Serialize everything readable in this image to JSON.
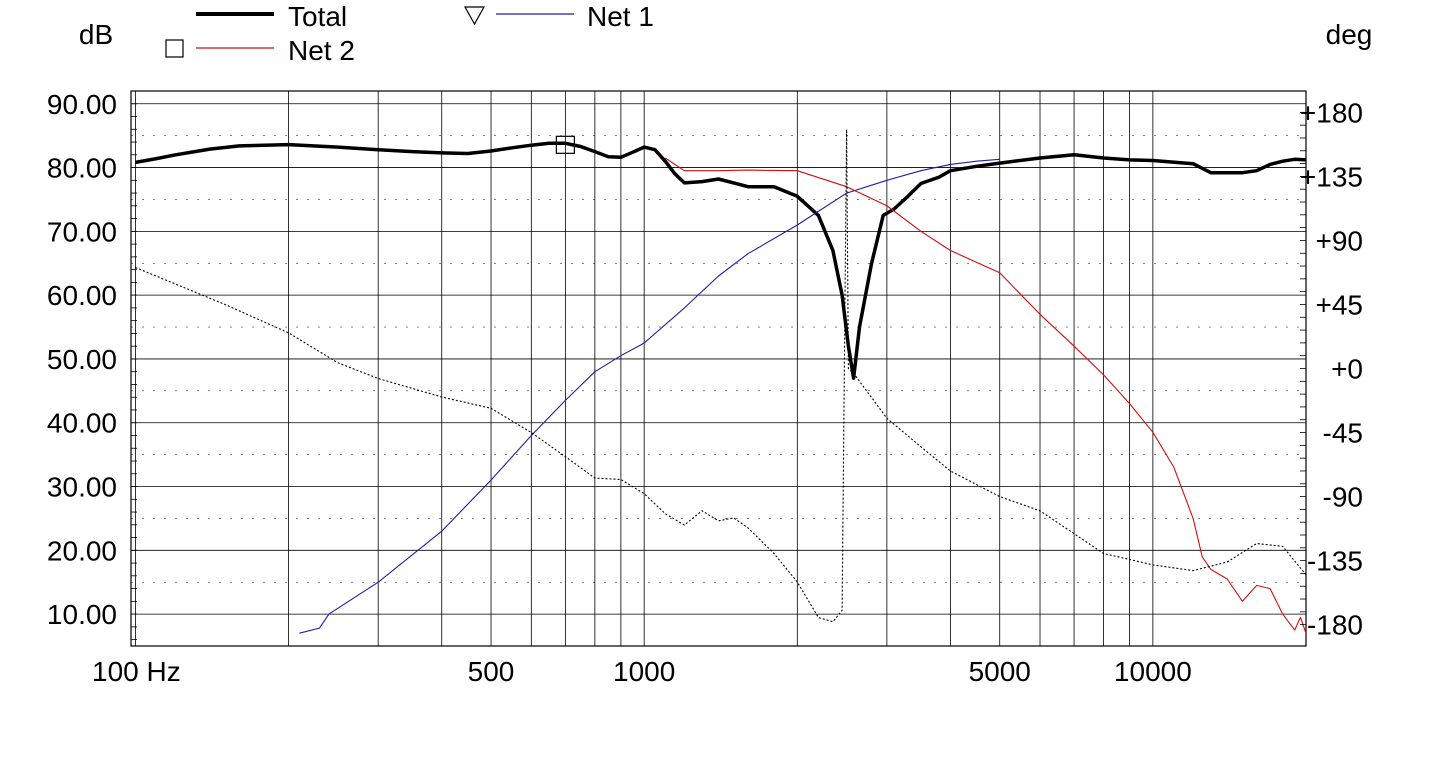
{
  "chart_data": {
    "type": "line",
    "ylabel_left": "dB",
    "ylabel_right": "deg",
    "xscale": "log",
    "xlim": [
      98,
      20000
    ],
    "ylim_left": [
      5,
      92
    ],
    "ylim_right": [
      -195,
      195
    ],
    "grid": true,
    "legend_placement": "top-left",
    "x_tick_labels": [
      {
        "value": 100,
        "label": "100 Hz"
      },
      {
        "value": 500,
        "label": "500"
      },
      {
        "value": 1000,
        "label": "1000"
      },
      {
        "value": 5000,
        "label": "5000"
      },
      {
        "value": 10000,
        "label": "10000"
      }
    ],
    "y_left_ticks": [
      {
        "value": 90,
        "label": "90.00"
      },
      {
        "value": 80,
        "label": "80.00"
      },
      {
        "value": 70,
        "label": "70.00"
      },
      {
        "value": 60,
        "label": "60.00"
      },
      {
        "value": 50,
        "label": "50.00"
      },
      {
        "value": 40,
        "label": "40.00"
      },
      {
        "value": 30,
        "label": "30.00"
      },
      {
        "value": 20,
        "label": "20.00"
      },
      {
        "value": 10,
        "label": "10.00"
      }
    ],
    "y_right_ticks": [
      {
        "value": 180,
        "label": "+180"
      },
      {
        "value": 135,
        "label": "+135"
      },
      {
        "value": 90,
        "label": "+90"
      },
      {
        "value": 45,
        "label": "+45"
      },
      {
        "value": 0,
        "label": "+0"
      },
      {
        "value": -45,
        "label": "-45"
      },
      {
        "value": -90,
        "label": "-90"
      },
      {
        "value": -135,
        "label": "-135"
      },
      {
        "value": -180,
        "label": "-180"
      }
    ],
    "series": [
      {
        "name": "Total",
        "axis": "left",
        "color": "#000000",
        "style": "thick",
        "marker": "",
        "points": [
          [
            100,
            80.8
          ],
          [
            110,
            81.4
          ],
          [
            120,
            82
          ],
          [
            140,
            82.9
          ],
          [
            160,
            83.4
          ],
          [
            200,
            83.6
          ],
          [
            250,
            83.2
          ],
          [
            300,
            82.8
          ],
          [
            350,
            82.5
          ],
          [
            400,
            82.3
          ],
          [
            450,
            82.2
          ],
          [
            500,
            82.6
          ],
          [
            550,
            83.1
          ],
          [
            600,
            83.5
          ],
          [
            650,
            83.8
          ],
          [
            700,
            83.8
          ],
          [
            750,
            83.3
          ],
          [
            800,
            82.5
          ],
          [
            850,
            81.7
          ],
          [
            900,
            81.6
          ],
          [
            950,
            82.4
          ],
          [
            1000,
            83.2
          ],
          [
            1050,
            82.8
          ],
          [
            1100,
            81
          ],
          [
            1150,
            79
          ],
          [
            1200,
            77.6
          ],
          [
            1300,
            77.8
          ],
          [
            1400,
            78.2
          ],
          [
            1500,
            77.6
          ],
          [
            1600,
            77
          ],
          [
            1800,
            77
          ],
          [
            2000,
            75.5
          ],
          [
            2200,
            72.5
          ],
          [
            2350,
            67
          ],
          [
            2450,
            60
          ],
          [
            2520,
            52
          ],
          [
            2580,
            47
          ],
          [
            2650,
            55
          ],
          [
            2800,
            65
          ],
          [
            2950,
            72.5
          ],
          [
            3100,
            73.5
          ],
          [
            3300,
            75.5
          ],
          [
            3500,
            77.5
          ],
          [
            3800,
            78.5
          ],
          [
            4000,
            79.5
          ],
          [
            4500,
            80.2
          ],
          [
            5000,
            80.7
          ],
          [
            6000,
            81.5
          ],
          [
            7000,
            82
          ],
          [
            8000,
            81.5
          ],
          [
            9000,
            81.2
          ],
          [
            10000,
            81.1
          ],
          [
            12000,
            80.6
          ],
          [
            13000,
            79.2
          ],
          [
            15000,
            79.2
          ],
          [
            16000,
            79.5
          ],
          [
            17000,
            80.5
          ],
          [
            18000,
            81
          ],
          [
            19000,
            81.3
          ],
          [
            20000,
            81.2
          ]
        ]
      },
      {
        "name": "Net 1",
        "axis": "left",
        "color": "#1e1ea8",
        "style": "thin",
        "marker": "triangle-down",
        "points": [
          [
            210,
            7
          ],
          [
            230,
            7.8
          ],
          [
            240,
            10
          ],
          [
            300,
            15
          ],
          [
            400,
            23
          ],
          [
            500,
            31
          ],
          [
            600,
            38
          ],
          [
            700,
            43.5
          ],
          [
            800,
            48
          ],
          [
            900,
            50.5
          ],
          [
            1000,
            52.5
          ],
          [
            1200,
            58
          ],
          [
            1400,
            63
          ],
          [
            1600,
            66.5
          ],
          [
            2000,
            71
          ],
          [
            2500,
            76
          ],
          [
            3000,
            78
          ],
          [
            3500,
            79.5
          ],
          [
            4000,
            80.5
          ],
          [
            4500,
            81
          ],
          [
            5000,
            81.3
          ]
        ]
      },
      {
        "name": "Net 2",
        "axis": "left",
        "color": "#d01010",
        "style": "thin",
        "marker": "square",
        "points": [
          [
            1100,
            81.5
          ],
          [
            1200,
            79.5
          ],
          [
            1400,
            79.5
          ],
          [
            1600,
            79.6
          ],
          [
            2000,
            79.5
          ],
          [
            2500,
            77
          ],
          [
            3000,
            74
          ],
          [
            3500,
            70
          ],
          [
            4000,
            67
          ],
          [
            5000,
            63.5
          ],
          [
            6000,
            57
          ],
          [
            7000,
            52
          ],
          [
            8000,
            47.5
          ],
          [
            9000,
            43
          ],
          [
            10000,
            38.5
          ],
          [
            11000,
            33
          ],
          [
            12000,
            25
          ],
          [
            12500,
            19
          ],
          [
            13000,
            17
          ],
          [
            14000,
            15.5
          ],
          [
            15000,
            12
          ],
          [
            16000,
            14.5
          ],
          [
            17000,
            14
          ],
          [
            18000,
            10
          ],
          [
            19000,
            7.5
          ],
          [
            19500,
            9.5
          ],
          [
            20000,
            7
          ]
        ]
      },
      {
        "name": "",
        "axis": "right",
        "color": "#000000",
        "style": "dotted",
        "marker": "",
        "points": [
          [
            100,
            71
          ],
          [
            150,
            45
          ],
          [
            200,
            25
          ],
          [
            250,
            4
          ],
          [
            300,
            -7
          ],
          [
            400,
            -20
          ],
          [
            500,
            -28
          ],
          [
            600,
            -45
          ],
          [
            700,
            -62
          ],
          [
            800,
            -77
          ],
          [
            900,
            -78
          ],
          [
            1000,
            -88
          ],
          [
            1100,
            -102
          ],
          [
            1200,
            -110
          ],
          [
            1300,
            -100
          ],
          [
            1400,
            -107
          ],
          [
            1500,
            -105
          ],
          [
            1600,
            -112
          ],
          [
            1800,
            -130
          ],
          [
            2000,
            -150
          ],
          [
            2200,
            -175
          ],
          [
            2350,
            -178
          ],
          [
            2450,
            -170
          ],
          [
            2500,
            168
          ],
          [
            2520,
            0
          ],
          [
            2600,
            -5
          ],
          [
            3000,
            -35
          ],
          [
            3500,
            -55
          ],
          [
            4000,
            -72
          ],
          [
            5000,
            -90
          ],
          [
            6000,
            -100
          ],
          [
            8000,
            -130
          ],
          [
            10000,
            -138
          ],
          [
            12000,
            -142
          ],
          [
            14000,
            -136
          ],
          [
            16000,
            -123
          ],
          [
            18000,
            -125
          ],
          [
            20000,
            -145
          ]
        ]
      }
    ]
  },
  "legend": {
    "total_label": "Total",
    "net1_label": "Net 1",
    "net2_label": "Net 2"
  },
  "axes": {
    "left_unit": "dB",
    "right_unit": "deg"
  }
}
